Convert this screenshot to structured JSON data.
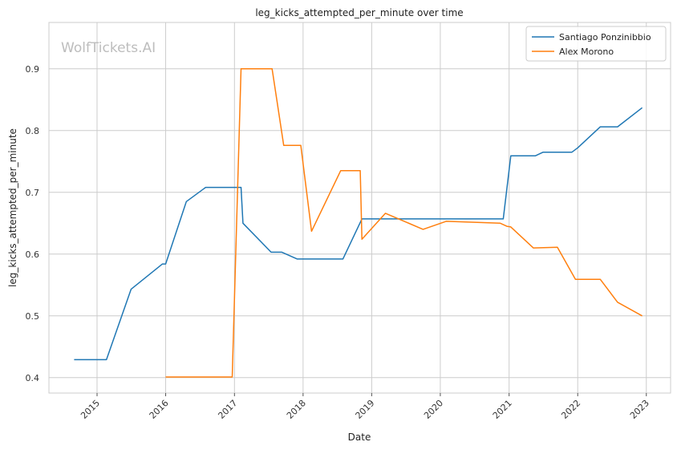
{
  "watermark": "WolfTickets.AI",
  "chart_data": {
    "type": "line",
    "title": "leg_kicks_attempted_per_minute over time",
    "xlabel": "Date",
    "ylabel": "leg_kicks_attempted_per_minute",
    "xlim": [
      "2014-04-20",
      "2023-05-10"
    ],
    "ylim": [
      0.375,
      0.975
    ],
    "x_ticks": [
      "2015",
      "2016",
      "2017",
      "2018",
      "2019",
      "2020",
      "2021",
      "2022",
      "2023"
    ],
    "y_ticks": [
      "0.4",
      "0.5",
      "0.6",
      "0.7",
      "0.8",
      "0.9"
    ],
    "grid": true,
    "legend": "top-right",
    "series": [
      {
        "name": "Santiago Ponzinibbio",
        "color": "#1f77b4",
        "points": [
          [
            "2014-09-01",
            0.429
          ],
          [
            "2015-02-20",
            0.429
          ],
          [
            "2015-07-01",
            0.543
          ],
          [
            "2015-12-15",
            0.584
          ],
          [
            "2016-01-01",
            0.584
          ],
          [
            "2016-04-20",
            0.685
          ],
          [
            "2016-08-01",
            0.708
          ],
          [
            "2017-01-15",
            0.708
          ],
          [
            "2017-02-05",
            0.708
          ],
          [
            "2017-02-15",
            0.65
          ],
          [
            "2017-07-15",
            0.603
          ],
          [
            "2017-09-10",
            0.603
          ],
          [
            "2017-12-01",
            0.592
          ],
          [
            "2018-08-01",
            0.592
          ],
          [
            "2018-11-10",
            0.657
          ],
          [
            "2019-06-01",
            0.657
          ],
          [
            "2020-12-01",
            0.657
          ],
          [
            "2021-01-10",
            0.759
          ],
          [
            "2021-05-20",
            0.759
          ],
          [
            "2021-07-01",
            0.765
          ],
          [
            "2021-12-01",
            0.765
          ],
          [
            "2022-01-01",
            0.772
          ],
          [
            "2022-05-01",
            0.806
          ],
          [
            "2022-08-01",
            0.806
          ],
          [
            "2022-12-10",
            0.837
          ]
        ]
      },
      {
        "name": "Alex Morono",
        "color": "#ff7f0e",
        "points": [
          [
            "2016-01-01",
            0.401
          ],
          [
            "2016-12-20",
            0.401
          ],
          [
            "2017-02-05",
            0.9
          ],
          [
            "2017-07-20",
            0.9
          ],
          [
            "2017-09-20",
            0.776
          ],
          [
            "2017-12-20",
            0.776
          ],
          [
            "2018-02-15",
            0.637
          ],
          [
            "2018-07-20",
            0.735
          ],
          [
            "2018-11-01",
            0.735
          ],
          [
            "2018-11-10",
            0.624
          ],
          [
            "2019-03-15",
            0.666
          ],
          [
            "2019-10-01",
            0.64
          ],
          [
            "2020-02-01",
            0.653
          ],
          [
            "2020-11-15",
            0.65
          ],
          [
            "2020-12-20",
            0.645
          ],
          [
            "2021-01-10",
            0.644
          ],
          [
            "2021-05-10",
            0.61
          ],
          [
            "2021-09-15",
            0.611
          ],
          [
            "2021-12-20",
            0.559
          ],
          [
            "2022-05-01",
            0.559
          ],
          [
            "2022-08-01",
            0.522
          ],
          [
            "2022-12-10",
            0.5
          ]
        ]
      }
    ]
  }
}
